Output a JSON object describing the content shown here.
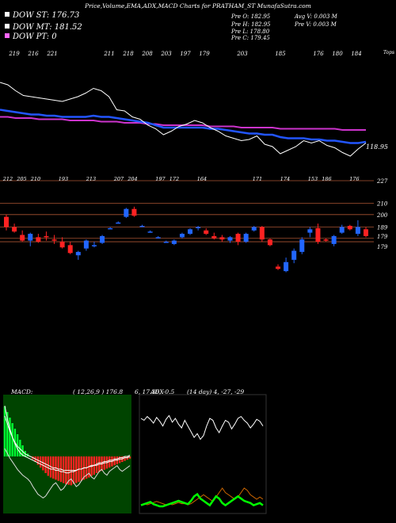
{
  "header": {
    "title": "Price,Volume,EMA,ADX,MACD Charts for PRATHAM_ST MunafaSutra.com",
    "legend": [
      {
        "label": "DOW ST: 176.73",
        "color": "#ffffff"
      },
      {
        "label": "DOW MT: 181.52",
        "color": "#ffffff"
      },
      {
        "label": "DOW PT: 0",
        "color": "#ff66ff"
      }
    ],
    "stats": [
      {
        "text": "Pre  O: 182.95"
      },
      {
        "text": "Avg V: 0.003 M"
      },
      {
        "text": "Pre  H: 182.95"
      },
      {
        "text": "Pre  V: 0.003 M"
      },
      {
        "text": "Pre  L: 178.80"
      },
      {
        "text": "Pre  C: 179.45"
      }
    ]
  },
  "colors": {
    "ema_short": "#2255ff",
    "ema_long": "#cc33cc",
    "up_candle": "#2266ff",
    "down_candle": "#ff2222",
    "gridline": "#aa5533",
    "macd_panel_bg": "#004400",
    "macd_bar": "#ff2222",
    "macd_bar_pos": "#00ff33",
    "adx_plus": "#00ff00",
    "adx_minus": "#cc6600"
  },
  "chart_data": [
    {
      "type": "line",
      "name": "price-ema-panel",
      "top_labels": [
        "219",
        "216",
        "221",
        "",
        "",
        "211",
        "218",
        "208",
        "203",
        "197",
        "179",
        "",
        "203",
        "",
        "185",
        "",
        "176",
        "180",
        "184"
      ],
      "top_right_label": "Tops",
      "last_price_label": "118.95",
      "series": [
        {
          "values": [
            219,
            217,
            212,
            208,
            207,
            206,
            205,
            204,
            203,
            205,
            207,
            210,
            214,
            212,
            207,
            196,
            195,
            190,
            188,
            183,
            180,
            175,
            178,
            182,
            184,
            187,
            185,
            181,
            178,
            174,
            172,
            170,
            171,
            174,
            167,
            165,
            159,
            162,
            165,
            170,
            168,
            170,
            166,
            164,
            160,
            157,
            163,
            168
          ]
        },
        {
          "values": [
            196,
            195,
            194,
            193,
            192,
            192,
            191,
            191,
            190,
            190,
            190,
            190,
            191,
            190,
            190,
            189,
            188,
            187,
            186,
            185,
            183,
            181,
            181,
            181,
            181,
            181,
            181,
            180,
            180,
            179,
            178,
            177,
            176,
            176,
            175,
            175,
            173,
            172,
            172,
            172,
            171,
            171,
            170,
            170,
            169,
            168,
            168,
            169
          ]
        },
        {
          "values": [
            190,
            190,
            189,
            189,
            189,
            188,
            188,
            188,
            188,
            187,
            187,
            187,
            187,
            186,
            186,
            186,
            185,
            185,
            185,
            184,
            184,
            183,
            183,
            183,
            183,
            183,
            183,
            182,
            182,
            182,
            182,
            181,
            181,
            181,
            181,
            181,
            180,
            180,
            180,
            180,
            180,
            180,
            180,
            180,
            179,
            179,
            179,
            179
          ]
        }
      ]
    },
    {
      "type": "bar",
      "name": "candlestick-panel",
      "top_labels": [
        "212",
        "205",
        "210",
        "",
        "193",
        "",
        "213",
        "",
        "207",
        "204",
        "",
        "197",
        "172",
        "",
        "164",
        "",
        "",
        "",
        "171",
        "",
        "174",
        "",
        "153",
        "186",
        "",
        "176"
      ],
      "price_axis": [
        "227",
        "210",
        "200",
        "189",
        "179",
        "179"
      ],
      "candles": [
        {
          "o": 198,
          "h": 200,
          "l": 186,
          "c": 189
        },
        {
          "o": 189,
          "h": 192,
          "l": 184,
          "c": 185
        },
        {
          "o": 182,
          "h": 186,
          "l": 176,
          "c": 177
        },
        {
          "o": 177,
          "h": 184,
          "l": 172,
          "c": 183
        },
        {
          "o": 180,
          "h": 183,
          "l": 175,
          "c": 176
        },
        {
          "o": 181,
          "h": 185,
          "l": 177,
          "c": 180
        },
        {
          "o": 178,
          "h": 182,
          "l": 174,
          "c": 177
        },
        {
          "o": 176,
          "h": 180,
          "l": 170,
          "c": 171
        },
        {
          "o": 173,
          "h": 176,
          "l": 165,
          "c": 166
        },
        {
          "o": 164,
          "h": 168,
          "l": 160,
          "c": 167
        },
        {
          "o": 170,
          "h": 178,
          "l": 168,
          "c": 177
        },
        {
          "o": 172,
          "h": 176,
          "l": 171,
          "c": 173
        },
        {
          "o": 175,
          "h": 182,
          "l": 174,
          "c": 181
        },
        {
          "o": 188,
          "h": 189,
          "l": 187,
          "c": 188
        },
        {
          "o": 193,
          "h": 194,
          "l": 192,
          "c": 193
        },
        {
          "o": 198,
          "h": 206,
          "l": 197,
          "c": 205
        },
        {
          "o": 205,
          "h": 207,
          "l": 198,
          "c": 199
        },
        {
          "o": 190,
          "h": 191,
          "l": 189,
          "c": 190
        },
        {
          "o": 185,
          "h": 186,
          "l": 184,
          "c": 185
        },
        {
          "o": 180,
          "h": 181,
          "l": 179,
          "c": 180
        },
        {
          "o": 176,
          "h": 177,
          "l": 175,
          "c": 176
        },
        {
          "o": 174,
          "h": 178,
          "l": 173,
          "c": 177
        },
        {
          "o": 180,
          "h": 184,
          "l": 179,
          "c": 183
        },
        {
          "o": 183,
          "h": 188,
          "l": 182,
          "c": 187
        },
        {
          "o": 188,
          "h": 190,
          "l": 186,
          "c": 189
        },
        {
          "o": 186,
          "h": 188,
          "l": 182,
          "c": 183
        },
        {
          "o": 181,
          "h": 184,
          "l": 178,
          "c": 179
        },
        {
          "o": 180,
          "h": 182,
          "l": 176,
          "c": 178
        },
        {
          "o": 177,
          "h": 181,
          "l": 175,
          "c": 180
        },
        {
          "o": 183,
          "h": 184,
          "l": 173,
          "c": 176
        },
        {
          "o": 176,
          "h": 184,
          "l": 175,
          "c": 183
        },
        {
          "o": 186,
          "h": 190,
          "l": 185,
          "c": 189
        },
        {
          "o": 189,
          "h": 190,
          "l": 176,
          "c": 178
        },
        {
          "o": 178,
          "h": 179,
          "l": 172,
          "c": 173
        },
        {
          "o": 154,
          "h": 156,
          "l": 151,
          "c": 152
        },
        {
          "o": 150,
          "h": 162,
          "l": 149,
          "c": 158
        },
        {
          "o": 160,
          "h": 170,
          "l": 157,
          "c": 168
        },
        {
          "o": 167,
          "h": 180,
          "l": 165,
          "c": 178
        },
        {
          "o": 184,
          "h": 189,
          "l": 180,
          "c": 187
        },
        {
          "o": 188,
          "h": 192,
          "l": 174,
          "c": 176
        },
        {
          "o": 178,
          "h": 179,
          "l": 176,
          "c": 177
        },
        {
          "o": 174,
          "h": 182,
          "l": 172,
          "c": 181
        },
        {
          "o": 184,
          "h": 191,
          "l": 183,
          "c": 189
        },
        {
          "o": 190,
          "h": 191,
          "l": 186,
          "c": 187
        },
        {
          "o": 183,
          "h": 195,
          "l": 181,
          "c": 189
        },
        {
          "o": 187,
          "h": 189,
          "l": 180,
          "c": 181
        }
      ]
    },
    {
      "type": "bar",
      "name": "macd-panel",
      "label": "MACD:",
      "params": "( 12,26,9 ) 176.8",
      "params2": "6,  17.36,  -0.5",
      "histogram": [
        9,
        8,
        7,
        6,
        5,
        4,
        3,
        2,
        1,
        0.5,
        0,
        -0.5,
        -1,
        -1.5,
        -2,
        -2.5,
        -3,
        -3.5,
        -3.8,
        -4,
        -4.2,
        -4.4,
        -4.6,
        -4.8,
        -5,
        -5.1,
        -5.2,
        -5,
        -4.8,
        -4.6,
        -4.4,
        -4.2,
        -4,
        -3.8,
        -3.5,
        -3.3,
        -3,
        -2.8,
        -2.6,
        -2.4,
        -2.2,
        -2,
        -1.8,
        -1.6,
        -1.4,
        -1.2,
        -1,
        -0.8,
        -0.6,
        -0.4
      ],
      "series": [
        {
          "values": [
            40,
            30,
            22,
            15,
            10,
            6,
            3,
            1,
            0,
            -1,
            -2,
            -3,
            -4,
            -5,
            -6,
            -7,
            -8,
            -9,
            -10,
            -10,
            -11,
            -11,
            -12,
            -12,
            -13,
            -13,
            -12,
            -12,
            -11,
            -10,
            -10,
            -9,
            -9,
            -8,
            -7,
            -7,
            -6,
            -5,
            -5,
            -4,
            -4,
            -3,
            -3,
            -2,
            -2,
            -1,
            -1,
            0,
            0,
            1
          ]
        },
        {
          "values": [
            32,
            26,
            20,
            15,
            11,
            8,
            6,
            4,
            2,
            1,
            0,
            -1,
            -2,
            -3,
            -4,
            -5,
            -6,
            -7,
            -8,
            -9,
            -9,
            -10,
            -10,
            -11,
            -11,
            -11,
            -11,
            -11,
            -11,
            -10,
            -10,
            -9,
            -9,
            -8,
            -8,
            -7,
            -7,
            -6,
            -6,
            -5,
            -5,
            -4,
            -4,
            -3,
            -3,
            -2,
            -2,
            -1,
            -1,
            0
          ]
        },
        {
          "values": [
            20,
            15,
            10,
            6,
            2,
            -2,
            -5,
            -8,
            -10,
            -12,
            -15,
            -20,
            -24,
            -28,
            -30,
            -32,
            -30,
            -26,
            -22,
            -18,
            -16,
            -20,
            -24,
            -22,
            -18,
            -14,
            -12,
            -16,
            -20,
            -18,
            -14,
            -10,
            -8,
            -6,
            -10,
            -12,
            -8,
            -4,
            -2,
            -6,
            -8,
            -4,
            -2,
            0,
            2,
            -2,
            -4,
            -2,
            0,
            2
          ]
        }
      ]
    },
    {
      "type": "line",
      "name": "adx-panel",
      "label": "ADX",
      "params": "(14 day) 4,  -27,  -29",
      "series": [
        {
          "name": "adx",
          "values": [
            60,
            58,
            62,
            59,
            55,
            61,
            57,
            52,
            59,
            63,
            56,
            60,
            54,
            50,
            58,
            52,
            46,
            40,
            44,
            38,
            42,
            52,
            60,
            58,
            50,
            45,
            52,
            58,
            56,
            49,
            54,
            60,
            62,
            58,
            55,
            50,
            54,
            59,
            57,
            52
          ]
        },
        {
          "name": "+di",
          "values": [
            6,
            7,
            8,
            9,
            7,
            6,
            5,
            5,
            6,
            7,
            8,
            9,
            10,
            9,
            8,
            7,
            10,
            14,
            16,
            12,
            10,
            8,
            6,
            10,
            14,
            12,
            8,
            6,
            8,
            10,
            12,
            14,
            12,
            10,
            9,
            8,
            6,
            7,
            8,
            6
          ]
        },
        {
          "name": "-di",
          "values": [
            5,
            6,
            5,
            6,
            7,
            8,
            7,
            6,
            5,
            6,
            5,
            6,
            7,
            6,
            6,
            5,
            6,
            8,
            10,
            12,
            14,
            12,
            10,
            8,
            12,
            16,
            20,
            16,
            14,
            12,
            10,
            12,
            16,
            20,
            18,
            14,
            12,
            10,
            12,
            10
          ]
        }
      ]
    }
  ]
}
